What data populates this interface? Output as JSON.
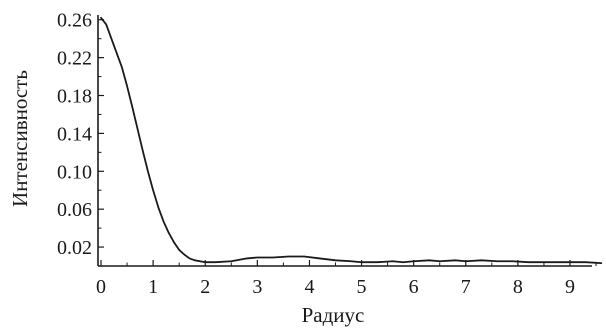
{
  "chart_data": {
    "type": "line",
    "title": "",
    "xlabel": "Радиус",
    "ylabel": "Интенсивность",
    "xlim": [
      0,
      9.6
    ],
    "ylim": [
      0,
      0.265
    ],
    "grid": false,
    "x_ticks": [
      0,
      1,
      2,
      3,
      4,
      5,
      6,
      7,
      8,
      9
    ],
    "x_tick_labels": [
      "0",
      "1",
      "2",
      "3",
      "4",
      "5",
      "6",
      "7",
      "8",
      "9"
    ],
    "y_ticks": [
      0.02,
      0.06,
      0.1,
      0.14,
      0.18,
      0.22,
      0.26
    ],
    "y_tick_labels": [
      "0.02",
      "0.06",
      "0.10",
      "0.14",
      "0.18",
      "0.22",
      "0.26"
    ],
    "series": [
      {
        "color": "#1a1a1a",
        "x": [
          0,
          0.1,
          0.2,
          0.3,
          0.4,
          0.5,
          0.6,
          0.7,
          0.8,
          0.9,
          1.0,
          1.1,
          1.2,
          1.3,
          1.4,
          1.5,
          1.6,
          1.7,
          1.8,
          1.9,
          2.0,
          2.2,
          2.5,
          2.8,
          3.0,
          3.3,
          3.6,
          3.9,
          4.2,
          4.5,
          4.8,
          5.0,
          5.3,
          5.6,
          5.8,
          6.0,
          6.3,
          6.5,
          6.8,
          7.0,
          7.3,
          7.6,
          7.9,
          8.2,
          8.5,
          8.8,
          9.0,
          9.3,
          9.6
        ],
        "y": [
          0.262,
          0.255,
          0.24,
          0.225,
          0.21,
          0.19,
          0.168,
          0.145,
          0.122,
          0.1,
          0.08,
          0.062,
          0.047,
          0.035,
          0.025,
          0.017,
          0.012,
          0.008,
          0.006,
          0.005,
          0.004,
          0.004,
          0.005,
          0.008,
          0.009,
          0.009,
          0.01,
          0.01,
          0.008,
          0.006,
          0.005,
          0.004,
          0.004,
          0.005,
          0.004,
          0.005,
          0.006,
          0.005,
          0.006,
          0.005,
          0.006,
          0.005,
          0.005,
          0.004,
          0.004,
          0.004,
          0.004,
          0.004,
          0.003
        ]
      }
    ]
  }
}
